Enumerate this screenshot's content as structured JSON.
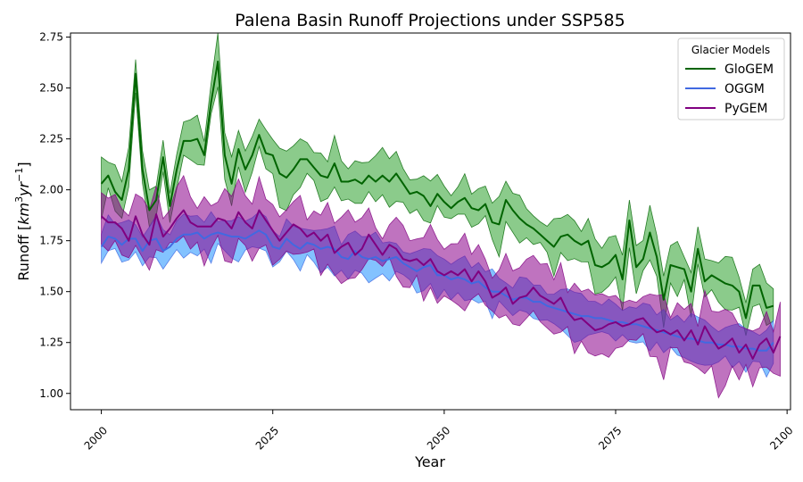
{
  "chart_data": {
    "type": "line",
    "title": "Palena Basin Runoff Projections under SSP585",
    "xlabel": "Year",
    "ylabel": "Runoff [km³yr⁻¹]",
    "ylabel_parts": {
      "prefix": "Runoff [",
      "unit1": "km",
      "exp1": "3",
      "unit2": "yr",
      "exp2": "−1",
      "suffix": "]"
    },
    "xlim": [
      1995.5,
      2100.5
    ],
    "ylim": [
      0.92,
      2.77
    ],
    "xticks": [
      2000,
      2025,
      2050,
      2075,
      2100
    ],
    "xtick_labels": [
      "2000",
      "2025",
      "2050",
      "2075",
      "2100"
    ],
    "yticks": [
      1.0,
      1.25,
      1.5,
      1.75,
      2.0,
      2.25,
      2.5,
      2.75
    ],
    "ytick_labels": [
      "1.00",
      "1.25",
      "1.50",
      "1.75",
      "2.00",
      "2.25",
      "2.50",
      "2.75"
    ],
    "grid": false,
    "legend": {
      "title": "Glacier Models",
      "placement": "top-right"
    },
    "series": [
      {
        "name": "GloGEM",
        "line_color": "#006400",
        "fill_color": "#2ca02c",
        "x_start": 2000,
        "values": [
          2.03,
          2.07,
          1.99,
          1.95,
          2.1,
          2.57,
          2.1,
          1.9,
          1.95,
          2.16,
          1.92,
          2.1,
          2.24,
          2.24,
          2.25,
          2.17,
          2.43,
          2.63,
          2.17,
          2.03,
          2.2,
          2.1,
          2.17,
          2.27,
          2.18,
          2.17,
          2.08,
          2.06,
          2.1,
          2.15,
          2.15,
          2.11,
          2.07,
          2.06,
          2.13,
          2.04,
          2.04,
          2.05,
          2.03,
          2.07,
          2.04,
          2.07,
          2.04,
          2.08,
          2.03,
          1.98,
          1.99,
          1.97,
          1.92,
          1.98,
          1.94,
          1.91,
          1.94,
          1.96,
          1.91,
          1.9,
          1.93,
          1.84,
          1.83,
          1.95,
          1.9,
          1.86,
          1.83,
          1.81,
          1.78,
          1.75,
          1.72,
          1.77,
          1.78,
          1.75,
          1.73,
          1.75,
          1.63,
          1.62,
          1.64,
          1.68,
          1.56,
          1.85,
          1.62,
          1.66,
          1.79,
          1.67,
          1.46,
          1.63,
          1.62,
          1.61,
          1.5,
          1.71,
          1.55,
          1.58,
          1.56,
          1.54,
          1.53,
          1.5,
          1.37,
          1.53,
          1.53,
          1.42,
          1.43
        ]
      },
      {
        "name": "OGGM",
        "line_color": "#4169e1",
        "fill_color": "#1e90ff",
        "x_start": 2000,
        "values": [
          1.72,
          1.77,
          1.76,
          1.73,
          1.76,
          1.76,
          1.7,
          1.75,
          1.76,
          1.7,
          1.72,
          1.76,
          1.78,
          1.78,
          1.79,
          1.76,
          1.78,
          1.79,
          1.78,
          1.77,
          1.77,
          1.76,
          1.78,
          1.8,
          1.78,
          1.72,
          1.71,
          1.76,
          1.73,
          1.71,
          1.74,
          1.73,
          1.71,
          1.72,
          1.71,
          1.67,
          1.66,
          1.7,
          1.67,
          1.66,
          1.67,
          1.65,
          1.66,
          1.67,
          1.64,
          1.62,
          1.6,
          1.62,
          1.63,
          1.58,
          1.58,
          1.56,
          1.57,
          1.56,
          1.54,
          1.55,
          1.52,
          1.5,
          1.5,
          1.48,
          1.46,
          1.47,
          1.47,
          1.45,
          1.45,
          1.43,
          1.42,
          1.41,
          1.4,
          1.39,
          1.38,
          1.38,
          1.37,
          1.37,
          1.36,
          1.35,
          1.35,
          1.34,
          1.34,
          1.33,
          1.32,
          1.31,
          1.3,
          1.29,
          1.28,
          1.27,
          1.27,
          1.26,
          1.25,
          1.25,
          1.24,
          1.24,
          1.23,
          1.23,
          1.22,
          1.22,
          1.21,
          1.21,
          1.25
        ]
      },
      {
        "name": "PyGEM",
        "line_color": "#800080",
        "fill_color": "#8b008b",
        "x_start": 2000,
        "values": [
          1.87,
          1.84,
          1.84,
          1.81,
          1.75,
          1.87,
          1.78,
          1.73,
          1.88,
          1.77,
          1.81,
          1.86,
          1.9,
          1.84,
          1.82,
          1.82,
          1.82,
          1.86,
          1.85,
          1.81,
          1.89,
          1.84,
          1.81,
          1.9,
          1.85,
          1.8,
          1.75,
          1.79,
          1.83,
          1.81,
          1.77,
          1.79,
          1.75,
          1.78,
          1.69,
          1.72,
          1.74,
          1.68,
          1.71,
          1.78,
          1.73,
          1.68,
          1.73,
          1.71,
          1.66,
          1.65,
          1.66,
          1.63,
          1.66,
          1.6,
          1.58,
          1.6,
          1.58,
          1.61,
          1.55,
          1.6,
          1.55,
          1.47,
          1.49,
          1.52,
          1.44,
          1.47,
          1.48,
          1.52,
          1.48,
          1.46,
          1.44,
          1.47,
          1.4,
          1.36,
          1.37,
          1.34,
          1.31,
          1.32,
          1.34,
          1.35,
          1.33,
          1.34,
          1.36,
          1.37,
          1.33,
          1.3,
          1.31,
          1.29,
          1.31,
          1.26,
          1.31,
          1.24,
          1.33,
          1.27,
          1.22,
          1.24,
          1.27,
          1.2,
          1.24,
          1.17,
          1.24,
          1.27,
          1.2,
          1.28
        ]
      }
    ]
  }
}
